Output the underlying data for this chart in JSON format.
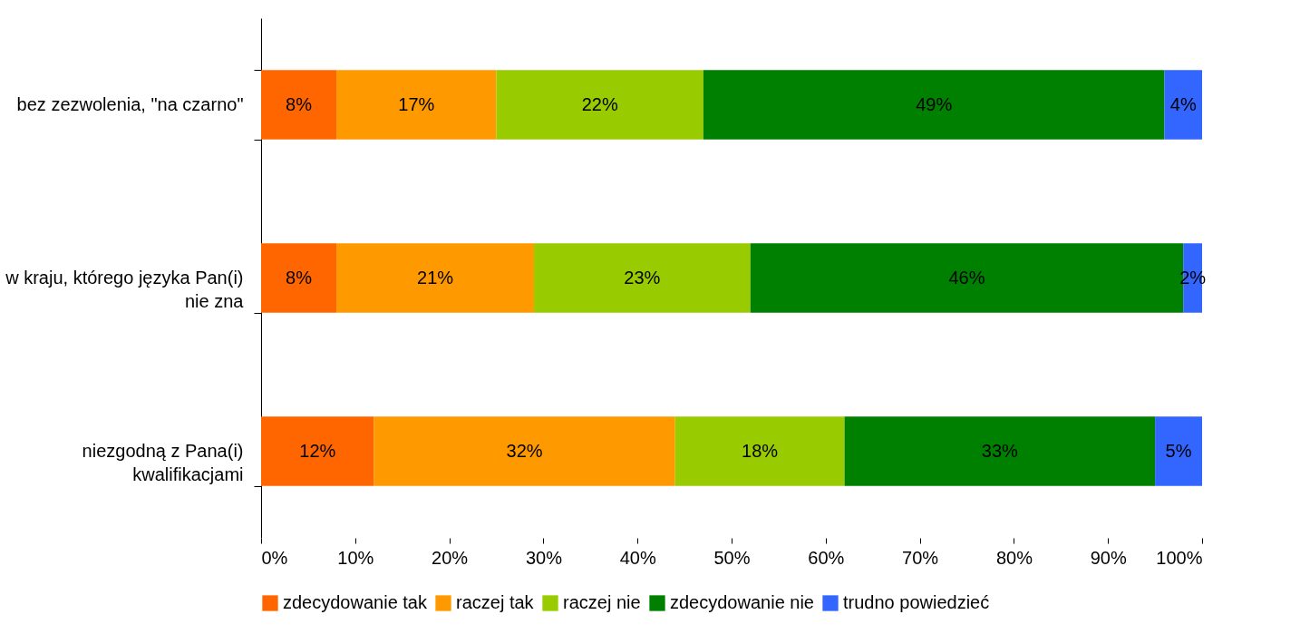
{
  "chart_data": {
    "type": "bar",
    "orientation": "horizontal",
    "stacked": true,
    "categories": [
      "bez zezwolenia, \"na czarno\"",
      "w kraju, którego języka Pan(i) nie zna",
      "niezgodną z Pana(i) kwalifikacjami"
    ],
    "series": [
      {
        "name": "zdecydowanie tak",
        "color": "#ff6600",
        "values": [
          8,
          8,
          12
        ],
        "value_labels": [
          "8%",
          "8%",
          "12%"
        ]
      },
      {
        "name": "raczej tak",
        "color": "#ff9900",
        "values": [
          17,
          21,
          32
        ],
        "value_labels": [
          "17%",
          "21%",
          "32%"
        ]
      },
      {
        "name": "raczej nie",
        "color": "#99cc00",
        "values": [
          22,
          23,
          18
        ],
        "value_labels": [
          "22%",
          "23%",
          "18%"
        ]
      },
      {
        "name": "zdecydowanie nie",
        "color": "#008000",
        "values": [
          49,
          46,
          33
        ],
        "value_labels": [
          "49%",
          "46%",
          "33%"
        ]
      },
      {
        "name": "trudno powiedzieć",
        "color": "#3366ff",
        "values": [
          4,
          2,
          5
        ],
        "value_labels": [
          "4%",
          "2%",
          "5%"
        ]
      }
    ],
    "xlim": [
      0,
      100
    ],
    "xticks": [
      {
        "value": 0,
        "label": "0%"
      },
      {
        "value": 10,
        "label": "10%"
      },
      {
        "value": 20,
        "label": "20%"
      },
      {
        "value": 30,
        "label": "30%"
      },
      {
        "value": 40,
        "label": "40%"
      },
      {
        "value": 50,
        "label": "50%"
      },
      {
        "value": 60,
        "label": "60%"
      },
      {
        "value": 70,
        "label": "70%"
      },
      {
        "value": 80,
        "label": "80%"
      },
      {
        "value": 90,
        "label": "90%"
      },
      {
        "value": 100,
        "label": "100%"
      }
    ],
    "grid": false,
    "legend": "bottom"
  }
}
